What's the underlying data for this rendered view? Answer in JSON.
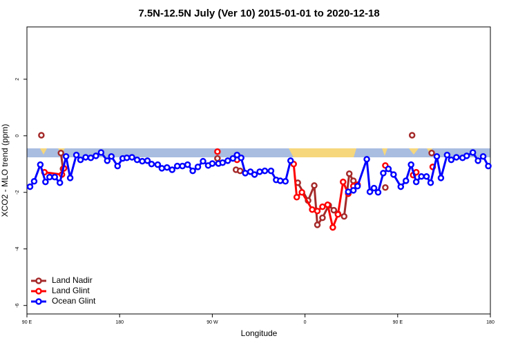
{
  "chart_data": {
    "type": "line",
    "title": "7.5N-12.5N July (Ver 10)   2015-01-01 to 2020-12-18",
    "xlabel": "Longitude",
    "ylabel": "XCO2 - MLO trend (ppm)",
    "xlim": [
      90,
      540
    ],
    "ylim": [
      -6.3,
      3.85
    ],
    "xticks": [
      {
        "value": 90,
        "label": "90 E"
      },
      {
        "value": 180,
        "label": "180"
      },
      {
        "value": 270,
        "label": "90 W"
      },
      {
        "value": 360,
        "label": "0"
      },
      {
        "value": 450,
        "label": "90 E"
      },
      {
        "value": 540,
        "label": "180"
      }
    ],
    "yticks": [
      -6,
      -4,
      -2,
      0,
      2
    ],
    "legend": "bottom left",
    "series": [
      {
        "name": "Land Nadir",
        "color": "#a52a2a",
        "x": [
          104,
          null,
          123,
          125,
          null,
          275,
          null,
          293,
          297,
          null,
          353,
          363,
          369,
          372,
          377,
          383,
          388,
          392,
          398,
          403,
          407,
          null,
          438,
          null,
          464,
          null,
          483
        ],
        "values": [
          0.02,
          null,
          -0.61,
          -1.17,
          null,
          -0.8,
          null,
          -1.2,
          -1.24,
          null,
          -1.66,
          -2.29,
          -1.76,
          -3.15,
          -2.9,
          -2.46,
          -2.63,
          -2.76,
          -2.85,
          -1.34,
          -1.59,
          null,
          -1.83,
          null,
          0.02,
          null,
          -0.61
        ]
      },
      {
        "name": "Land Glint",
        "color": "#ff0000",
        "x": [
          107,
          124,
          126,
          null,
          275,
          null,
          294,
          null,
          349,
          352,
          357,
          367,
          372,
          377,
          382,
          387,
          392,
          397,
          402,
          407,
          411,
          null,
          438,
          null,
          465,
          468,
          null,
          484
        ],
        "values": [
          -1.29,
          -1.37,
          -1.15,
          null,
          -0.56,
          null,
          -0.85,
          null,
          -1.0,
          -2.17,
          -2.0,
          -2.61,
          -2.66,
          -2.51,
          -2.44,
          -3.24,
          -2.78,
          -1.63,
          -2.05,
          -1.78,
          -1.73,
          null,
          -1.05,
          null,
          -1.39,
          -1.29,
          null,
          -1.1
        ]
      },
      {
        "name": "Ocean Glint",
        "color": "#0000ff",
        "x": [
          93,
          97,
          103,
          108,
          112,
          117,
          122,
          128,
          132,
          138,
          142,
          147,
          152,
          157,
          162,
          168,
          172,
          178,
          183,
          187,
          192,
          197,
          202,
          207,
          211,
          217,
          221,
          226,
          231,
          236,
          241,
          246,
          251,
          256,
          261,
          266,
          270,
          276,
          280,
          285,
          290,
          294,
          298,
          302,
          307,
          311,
          316,
          321,
          327,
          332,
          336,
          341,
          346,
          null,
          402,
          407,
          411,
          420,
          423,
          427,
          431,
          436,
          441,
          446,
          453,
          458,
          463,
          468,
          473,
          478,
          482,
          488,
          492,
          498,
          502,
          507,
          513,
          517,
          523,
          528,
          533,
          538
        ],
        "values": [
          -1.8,
          -1.61,
          -1.02,
          -1.63,
          -1.46,
          -1.46,
          -1.66,
          -0.73,
          -1.49,
          -0.68,
          -0.85,
          -0.76,
          -0.78,
          -0.71,
          -0.59,
          -0.88,
          -0.73,
          -1.07,
          -0.8,
          -0.78,
          -0.76,
          -0.85,
          -0.9,
          -0.88,
          -1.0,
          -1.02,
          -1.15,
          -1.12,
          -1.2,
          -1.07,
          -1.07,
          -1.02,
          -1.24,
          -1.1,
          -0.9,
          -1.05,
          -0.98,
          -0.98,
          -0.95,
          -0.88,
          -0.8,
          -0.68,
          -0.78,
          -1.32,
          -1.27,
          -1.37,
          -1.27,
          -1.24,
          -1.24,
          -1.56,
          -1.59,
          -1.61,
          -0.88,
          null,
          -1.98,
          -1.93,
          -1.78,
          -0.83,
          -1.98,
          -1.85,
          -2.0,
          -1.32,
          -1.17,
          -1.37,
          -1.8,
          -1.59,
          -1.02,
          -1.63,
          -1.44,
          -1.44,
          -1.66,
          -0.73,
          -1.49,
          -0.68,
          -0.85,
          -0.76,
          -0.78,
          -0.71,
          -0.59,
          -0.88,
          -0.73,
          -1.07
        ]
      }
    ]
  }
}
